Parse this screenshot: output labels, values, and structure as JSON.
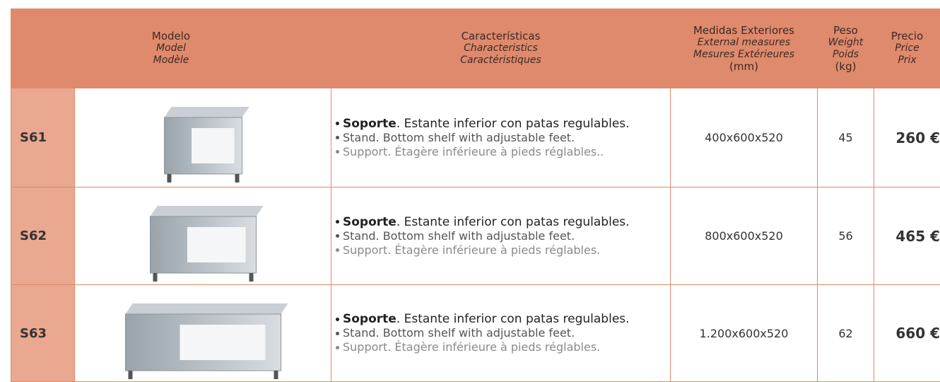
{
  "header": {
    "model": [
      "Modelo",
      "Model",
      "Modèle"
    ],
    "characteristics": [
      "Características",
      "Characteristics",
      "Caractéristiques"
    ],
    "measures": [
      "Medidas Exteriores",
      "External measures",
      "Mesures Extérieures",
      "(mm)"
    ],
    "weight": [
      "Peso",
      "Weight",
      "Poids",
      "(kg)"
    ],
    "price": [
      "Precio",
      "Price",
      "Prix"
    ]
  },
  "rows": [
    {
      "model": "S61",
      "es_bold": "Soporte",
      "es_rest": ". Estante inferior con patas regulables.",
      "en": "Stand. Bottom shelf with adjustable feet.",
      "fr": "Support. Étagère inférieure à pieds réglables..",
      "measures": "400x600x520",
      "weight": "45",
      "price": "260 €"
    },
    {
      "model": "S62",
      "es_bold": "Soporte",
      "es_rest": ". Estante inferior con patas regulables.",
      "en": "Stand. Bottom shelf with adjustable feet.",
      "fr": "Support. Étagère inférieure à pieds réglables.",
      "measures": "800x600x520",
      "weight": "56",
      "price": "465 €"
    },
    {
      "model": "S63",
      "es_bold": "Soporte",
      "es_rest": ". Estante inferior con patas regulables.",
      "en": "Stand. Bottom shelf with adjustable feet.",
      "fr": "Support. Étagère inférieure à pieds réglables.",
      "measures": "1.200x600x520",
      "weight": "62",
      "price": "660 €"
    }
  ]
}
